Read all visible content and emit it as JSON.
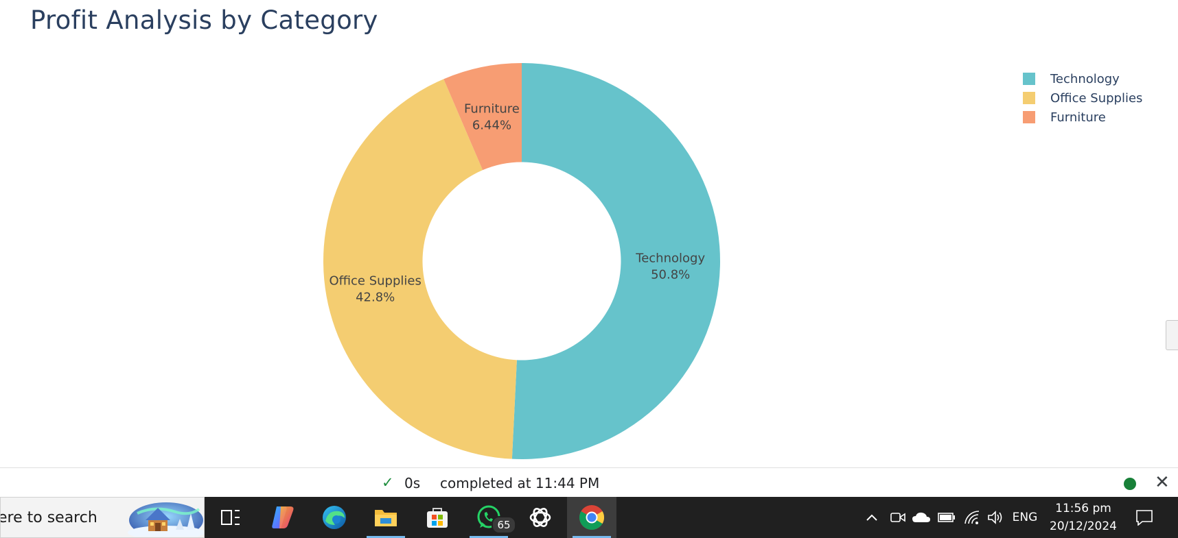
{
  "chart_data": {
    "type": "pie",
    "title": "Profit Analysis by Category",
    "hole": 0.5,
    "labels": [
      "Technology",
      "Office Supplies",
      "Furniture"
    ],
    "percent_labels": [
      "50.8%",
      "42.8%",
      "6.44%"
    ],
    "values": [
      50.8,
      42.8,
      6.44
    ],
    "colors": [
      "#66c3cb",
      "#f4cd71",
      "#f79d73"
    ],
    "legend_position": "top-right",
    "legend": [
      "Technology",
      "Office Supplies",
      "Furniture"
    ]
  },
  "status_bar": {
    "check_icon": "check-icon",
    "duration": "0s",
    "completed_text": "completed at 11:44 PM",
    "status_dot_color": "#188038",
    "close_icon": "close-icon"
  },
  "taskbar": {
    "background": "#202020",
    "search_text": "ere to search",
    "search_art_icon": "winter-cabin-search-art",
    "apps": [
      {
        "name": "task-view-icon"
      },
      {
        "name": "copilot-icon"
      },
      {
        "name": "edge-icon"
      },
      {
        "name": "file-explorer-icon"
      },
      {
        "name": "microsoft-store-icon"
      },
      {
        "name": "whatsapp-icon",
        "badge": "65"
      },
      {
        "name": "chatgpt-icon"
      },
      {
        "name": "chrome-icon"
      }
    ],
    "tray": {
      "chevron_icon": "chevron-up-icon",
      "meet_icon": "meet-now-icon",
      "onedrive_icon": "cloud-icon",
      "battery_icon": "battery-icon",
      "wifi_icon": "wifi-icon",
      "volume_icon": "volume-icon",
      "language": "ENG",
      "time": "11:56 pm",
      "date": "20/12/2024",
      "notification_icon": "notification-icon"
    }
  }
}
